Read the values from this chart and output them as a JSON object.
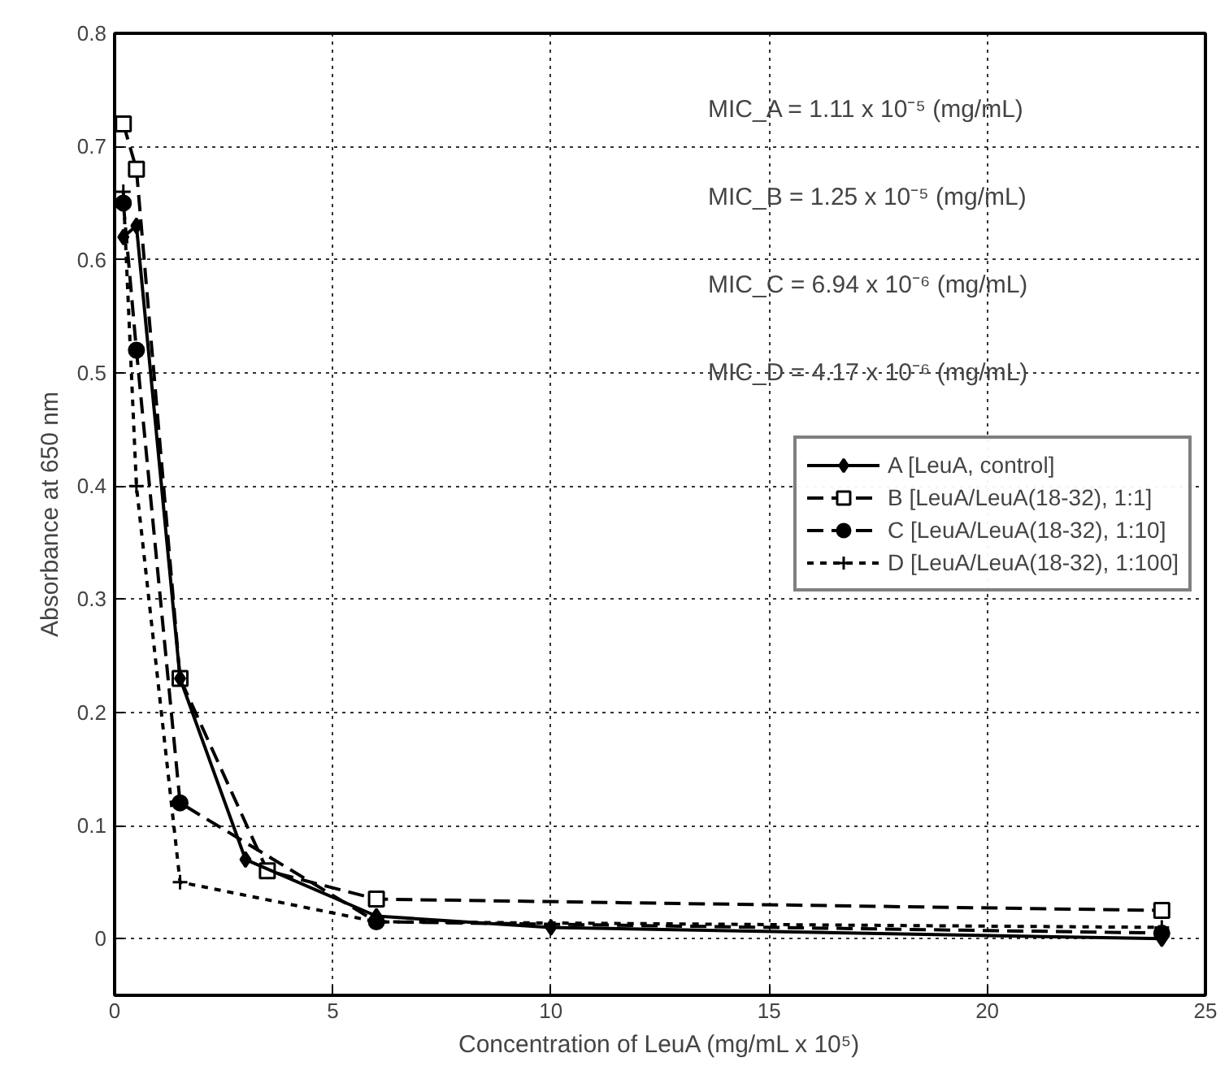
{
  "chart_data": {
    "type": "line",
    "xlabel": "Concentration of LeuA (mg/mL x 10⁵)",
    "ylabel": "Absorbance at 650 nm",
    "xlim": [
      0,
      25
    ],
    "ylim": [
      -0.05,
      0.8
    ],
    "xticks": [
      0,
      5,
      10,
      15,
      20,
      25
    ],
    "yticks": [
      0,
      0.1,
      0.2,
      0.3,
      0.4,
      0.5,
      0.6,
      0.7,
      0.8
    ],
    "grid": true,
    "legend": "right",
    "series": [
      {
        "name": "A [LeuA, control]",
        "color": "#000000",
        "marker": "diamond",
        "line_style": "solid",
        "x": [
          0.2,
          0.5,
          1.5,
          3,
          6,
          10,
          24
        ],
        "values": [
          0.62,
          0.63,
          0.23,
          0.07,
          0.02,
          0.01,
          0.0
        ]
      },
      {
        "name": "B [LeuA/LeuA(18-32), 1:1]",
        "color": "#000000",
        "marker": "square",
        "line_style": "dashed",
        "x": [
          0.2,
          0.5,
          1.5,
          3.5,
          6,
          24
        ],
        "values": [
          0.72,
          0.68,
          0.23,
          0.06,
          0.035,
          0.025
        ]
      },
      {
        "name": "C [LeuA/LeuA(18-32), 1:10]",
        "color": "#000000",
        "marker": "circle",
        "line_style": "dashed",
        "x": [
          0.2,
          0.5,
          1.5,
          6,
          24
        ],
        "values": [
          0.65,
          0.52,
          0.12,
          0.015,
          0.005
        ]
      },
      {
        "name": "D [LeuA/LeuA(18-32), 1:100]",
        "color": "#000000",
        "marker": "cross",
        "line_style": "dotted",
        "x": [
          0.2,
          0.5,
          1.5,
          6,
          24
        ],
        "values": [
          0.66,
          0.4,
          0.05,
          0.015,
          0.01
        ]
      }
    ],
    "annotations": [
      "MIC_A = 1.11 x 10⁻⁵ (mg/mL)",
      "MIC_B = 1.25 x 10⁻⁵ (mg/mL)",
      "MIC_C = 6.94 x 10⁻⁶ (mg/mL)",
      "MIC_D = 4.17 x 10⁻⁶ (mg/mL)"
    ]
  }
}
